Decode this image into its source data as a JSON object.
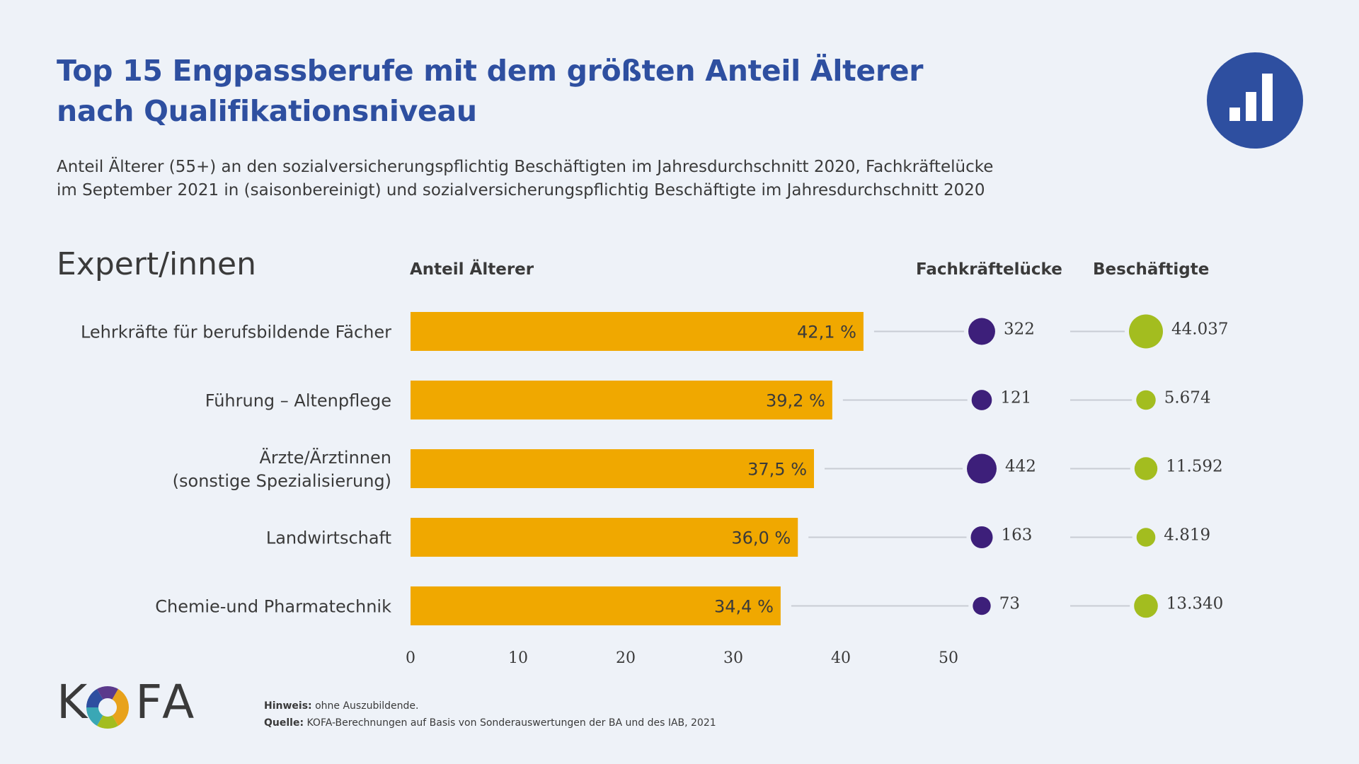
{
  "title": {
    "line1": "Top 15 Engpassberufe mit dem größten Anteil Älterer",
    "line2": "nach Qualifikationsniveau"
  },
  "subtitle": {
    "line1": "Anteil Älterer (55+) an den sozialversicherungspflichtig Beschäftigten im Jahresdurchschnitt 2020, Fachkräftelücke",
    "line2": "im September 2021 in (saisonbereinigt) und sozialversicherungspflichtig Beschäftigte im Jahresdurchschnitt 2020"
  },
  "section_heading": "Expert/innen",
  "logo": "KOFA",
  "notes": {
    "hinweis_label": "Hinweis:",
    "hinweis_text": " ohne Auszubildende.",
    "quelle_label": "Quelle:",
    "quelle_text": " KOFA-Berechnungen auf Basis von Sonderauswertungen der BA und des IAB, 2021"
  },
  "icons": {
    "badge": "bar-chart-icon"
  },
  "colors": {
    "title": "#2e4fa0",
    "bar": "#f0a800",
    "gap_dot": "#3d1f7a",
    "employed_dot": "#a3bd1f",
    "connector": "#c8ccd4",
    "badge": "#2e4fa0"
  },
  "chart_data": {
    "type": "bar",
    "orientation": "horizontal",
    "columns": {
      "share": "Anteil Älterer",
      "gap": "Fachkräftelücke",
      "employed": "Beschäftigte"
    },
    "categories": [
      [
        "Lehrkräfte für berufsbildende Fächer"
      ],
      [
        "Führung – Altenpflege"
      ],
      [
        "Ärzte/Ärztinnen",
        "(sonstige Spezialisierung)"
      ],
      [
        "Landwirtschaft"
      ],
      [
        "Chemie-und Pharmatechnik"
      ]
    ],
    "values": [
      42.1,
      39.2,
      37.5,
      36.0,
      34.4
    ],
    "value_labels": [
      "42,1 %",
      "39,2 %",
      "37,5 %",
      "36,0 %",
      "34,4 %"
    ],
    "fachkraefteluecke": [
      322,
      121,
      442,
      163,
      73
    ],
    "fachkraefteluecke_labels": [
      "322",
      "121",
      "442",
      "163",
      "73"
    ],
    "beschaeftigte": [
      44037,
      5674,
      11592,
      4819,
      13340
    ],
    "beschaeftigte_labels": [
      "44.037",
      "5.674",
      "11.592",
      "4.819",
      "13.340"
    ],
    "xlim": [
      0,
      50
    ],
    "xticks": [
      0,
      10,
      20,
      30,
      40,
      50
    ],
    "grid": false,
    "legend": "none"
  }
}
